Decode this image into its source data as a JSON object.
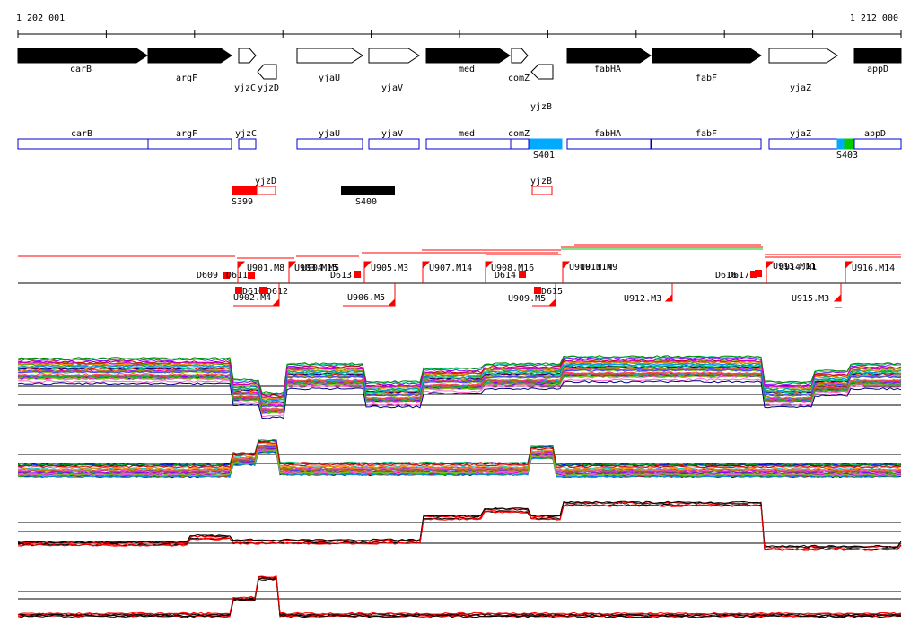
{
  "ruler": {
    "start_label": "1 202 001",
    "end_label": "1 212 000"
  },
  "colors": {
    "blue": "#0000cc",
    "red": "#ff0000",
    "black": "#000000",
    "cyan": "#00aaff",
    "green": "#00cc00"
  },
  "genes": [
    {
      "id": "carB",
      "label": "carB",
      "strand": "+",
      "filled": true
    },
    {
      "id": "argF",
      "label": "argF",
      "strand": "+",
      "filled": true
    },
    {
      "id": "yjzC",
      "label": "yjzC",
      "strand": "+",
      "filled": false
    },
    {
      "id": "yjzD",
      "label": "yjzD",
      "strand": "-",
      "filled": false
    },
    {
      "id": "yjaU",
      "label": "yjaU",
      "strand": "+",
      "filled": false
    },
    {
      "id": "yjaV",
      "label": "yjaV",
      "strand": "+",
      "filled": false
    },
    {
      "id": "med",
      "label": "med",
      "strand": "+",
      "filled": true
    },
    {
      "id": "comZ",
      "label": "comZ",
      "strand": "+",
      "filled": false
    },
    {
      "id": "yjzB",
      "label": "yjzB",
      "strand": "-",
      "filled": false
    },
    {
      "id": "fabHA",
      "label": "fabHA",
      "strand": "+",
      "filled": true
    },
    {
      "id": "fabF",
      "label": "fabF",
      "strand": "+",
      "filled": true
    },
    {
      "id": "yjaZ",
      "label": "yjaZ",
      "strand": "+",
      "filled": false
    },
    {
      "id": "appD",
      "label": "appD",
      "strand": "+",
      "filled": true
    }
  ],
  "cds_boxes": [
    {
      "id": "carB",
      "label": "carB"
    },
    {
      "id": "argF",
      "label": "argF"
    },
    {
      "id": "yjzC",
      "label": "yjzC"
    },
    {
      "id": "yjaU",
      "label": "yjaU"
    },
    {
      "id": "yjaV",
      "label": "yjaV"
    },
    {
      "id": "med",
      "label": "med"
    },
    {
      "id": "comZ",
      "label": "comZ"
    },
    {
      "id": "fabHA",
      "label": "fabHA"
    },
    {
      "id": "fabF",
      "label": "fabF"
    },
    {
      "id": "yjaZ",
      "label": "yjaZ"
    },
    {
      "id": "appD",
      "label": "appD"
    }
  ],
  "sigma_marks": [
    {
      "id": "S401",
      "label": "S401",
      "color": "cyan"
    },
    {
      "id": "S403",
      "label": "S403",
      "color": "green"
    }
  ],
  "minus_strand_boxes": [
    {
      "id": "yjzD",
      "label": "yjzD"
    },
    {
      "id": "yjzB",
      "label": "yjzB"
    }
  ],
  "segments": [
    {
      "id": "S399",
      "label": "S399",
      "color": "red"
    },
    {
      "id": "S400",
      "label": "S400",
      "color": "black"
    }
  ],
  "upper_features": [
    {
      "id": "D609",
      "label": "D609"
    },
    {
      "id": "D611",
      "label": "D611"
    },
    {
      "id": "U901",
      "label": "U901.M8"
    },
    {
      "id": "U903",
      "label": "U903.M15"
    },
    {
      "id": "U904",
      "label": "U904.M5"
    },
    {
      "id": "D613",
      "label": "D613"
    },
    {
      "id": "U905",
      "label": "U905.M3"
    },
    {
      "id": "U907",
      "label": "U907.M14"
    },
    {
      "id": "D614",
      "label": "D614"
    },
    {
      "id": "U908",
      "label": "U908.M16"
    },
    {
      "id": "U910",
      "label": "U910.M14"
    },
    {
      "id": "U911",
      "label": "U911.M9"
    },
    {
      "id": "D616",
      "label": "D616"
    },
    {
      "id": "D617",
      "label": "D617"
    },
    {
      "id": "U913",
      "label": "U913.M11"
    },
    {
      "id": "U914",
      "label": "U914.M1"
    },
    {
      "id": "U916",
      "label": "U916.M14"
    }
  ],
  "lower_features": [
    {
      "id": "D610",
      "label": "D610"
    },
    {
      "id": "D612",
      "label": "D612"
    },
    {
      "id": "U902",
      "label": "U902.M4"
    },
    {
      "id": "U906",
      "label": "U906.M5"
    },
    {
      "id": "U909",
      "label": "U909.M5"
    },
    {
      "id": "D615",
      "label": "D615"
    },
    {
      "id": "U912",
      "label": "U912.M3"
    },
    {
      "id": "U915",
      "label": "U915.M3"
    }
  ],
  "trace_panels": [
    {
      "id": "panel1",
      "series_count": 40
    },
    {
      "id": "panel2",
      "series_count": 30
    },
    {
      "id": "panel3",
      "series_count": 6
    },
    {
      "id": "panel4",
      "series_count": 6
    }
  ]
}
